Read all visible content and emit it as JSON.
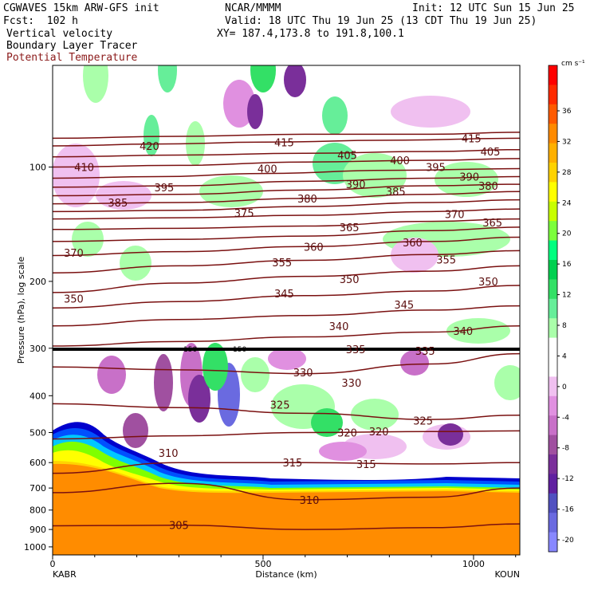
{
  "header": {
    "model": "CGWAVES 15km ARW-GFS init",
    "center": "NCAR/MMMM",
    "init": "Init: 12 UTC Sun 15 Jun 25",
    "fcst": "Fcst:  102 h",
    "valid": "Valid: 18 UTC Thu 19 Jun 25 (13 CDT Thu 19 Jun 25)",
    "field1": "Vertical velocity",
    "field2": "Boundary Layer Tracer",
    "field3": "Potential Temperature",
    "xy": "XY= 187.4,173.8 to 191.8,100.1"
  },
  "colors": {
    "theta_line": "#7a1010",
    "theta_label": "#5a0d0d",
    "field3_text": "#8b1a1a"
  },
  "colorbar": {
    "unit": "cm s⁻¹",
    "ticks": [
      "36",
      "32",
      "28",
      "24",
      "20",
      "16",
      "12",
      "8",
      "4",
      "0",
      "-4",
      "-8",
      "-12",
      "-16",
      "-20"
    ],
    "colors": [
      "#ff0000",
      "#ff2a00",
      "#ff5a00",
      "#ff8a00",
      "#ffb000",
      "#ffd200",
      "#ffff00",
      "#c8ff00",
      "#7cff3c",
      "#00ff7f",
      "#00d050",
      "#33e066",
      "#66ee99",
      "#aaffaa",
      "#ffffff",
      "#ffffff",
      "#f0c0f0",
      "#e090e0",
      "#c870c8",
      "#a050a0",
      "#7a2f9a",
      "#6020a0",
      "#5050c0",
      "#6a6ae0",
      "#8888ff"
    ]
  },
  "boundary_layer_colors": [
    "#ff8c00",
    "#ffd400",
    "#ffff00",
    "#7fff00",
    "#00c8ff",
    "#0050ff",
    "#0000cd"
  ],
  "chart_data": {
    "type": "heatmap",
    "title": "Vertical velocity",
    "xlabel": "Distance (km)",
    "ylabel": "Pressure (hPa), log scale",
    "x_ticks": [
      "0",
      "500",
      "1000"
    ],
    "xlim": [
      0,
      1110
    ],
    "y_ticks": [
      "100",
      "200",
      "300",
      "400",
      "500",
      "600",
      "700",
      "800",
      "900",
      "1000"
    ],
    "left_station": "KABR",
    "right_station": "KOUN",
    "tropopause_marks": [
      "150",
      "150"
    ],
    "theta_labels": [
      {
        "text": "420",
        "x": 230,
        "p": 88
      },
      {
        "text": "415",
        "x": 550,
        "p": 86
      },
      {
        "text": "415",
        "x": 995,
        "p": 84
      },
      {
        "text": "410",
        "x": 75,
        "p": 100
      },
      {
        "text": "405",
        "x": 700,
        "p": 93
      },
      {
        "text": "405",
        "x": 1040,
        "p": 91
      },
      {
        "text": "400",
        "x": 510,
        "p": 101
      },
      {
        "text": "400",
        "x": 825,
        "p": 96
      },
      {
        "text": "395",
        "x": 265,
        "p": 113
      },
      {
        "text": "395",
        "x": 910,
        "p": 100
      },
      {
        "text": "390",
        "x": 720,
        "p": 111
      },
      {
        "text": "390",
        "x": 990,
        "p": 106
      },
      {
        "text": "385",
        "x": 155,
        "p": 124
      },
      {
        "text": "385",
        "x": 815,
        "p": 116
      },
      {
        "text": "380",
        "x": 605,
        "p": 121
      },
      {
        "text": "380",
        "x": 1035,
        "p": 112
      },
      {
        "text": "375",
        "x": 455,
        "p": 132
      },
      {
        "text": "370",
        "x": 50,
        "p": 168
      },
      {
        "text": "370",
        "x": 955,
        "p": 133
      },
      {
        "text": "365",
        "x": 705,
        "p": 144
      },
      {
        "text": "365",
        "x": 1045,
        "p": 140
      },
      {
        "text": "360",
        "x": 620,
        "p": 162
      },
      {
        "text": "360",
        "x": 855,
        "p": 158
      },
      {
        "text": "355",
        "x": 545,
        "p": 178
      },
      {
        "text": "355",
        "x": 935,
        "p": 175
      },
      {
        "text": "350",
        "x": 50,
        "p": 222
      },
      {
        "text": "350",
        "x": 705,
        "p": 197
      },
      {
        "text": "350",
        "x": 1035,
        "p": 200
      },
      {
        "text": "345",
        "x": 550,
        "p": 215
      },
      {
        "text": "345",
        "x": 835,
        "p": 230
      },
      {
        "text": "340",
        "x": 680,
        "p": 262
      },
      {
        "text": "340",
        "x": 975,
        "p": 270
      },
      {
        "text": "335",
        "x": 720,
        "p": 302
      },
      {
        "text": "335",
        "x": 885,
        "p": 305
      },
      {
        "text": "330",
        "x": 595,
        "p": 347
      },
      {
        "text": "330",
        "x": 710,
        "p": 370
      },
      {
        "text": "325",
        "x": 540,
        "p": 422
      },
      {
        "text": "325",
        "x": 880,
        "p": 465
      },
      {
        "text": "320",
        "x": 700,
        "p": 500
      },
      {
        "text": "320",
        "x": 775,
        "p": 497
      },
      {
        "text": "315",
        "x": 570,
        "p": 600
      },
      {
        "text": "315",
        "x": 745,
        "p": 605
      },
      {
        "text": "310",
        "x": 275,
        "p": 565
      },
      {
        "text": "310",
        "x": 610,
        "p": 752
      },
      {
        "text": "305",
        "x": 300,
        "p": 877
      }
    ],
    "theta_lines": [
      {
        "level": 420,
        "points": [
          [
            0,
            84
          ],
          [
            300,
            83
          ],
          [
            600,
            82
          ],
          [
            900,
            82
          ],
          [
            1110,
            81
          ]
        ]
      },
      {
        "level": 415,
        "points": [
          [
            0,
            88
          ],
          [
            250,
            87
          ],
          [
            500,
            86
          ],
          [
            800,
            85
          ],
          [
            1110,
            84
          ]
        ]
      },
      {
        "level": 410,
        "points": [
          [
            0,
            94
          ],
          [
            300,
            93
          ],
          [
            600,
            92
          ],
          [
            900,
            91
          ],
          [
            1110,
            90
          ]
        ]
      },
      {
        "level": 405,
        "points": [
          [
            0,
            100
          ],
          [
            300,
            99
          ],
          [
            600,
            97
          ],
          [
            900,
            96
          ],
          [
            1110,
            95
          ]
        ]
      },
      {
        "level": 400,
        "points": [
          [
            0,
            107
          ],
          [
            250,
            106
          ],
          [
            500,
            104
          ],
          [
            800,
            102
          ],
          [
            1110,
            101
          ]
        ]
      },
      {
        "level": 395,
        "points": [
          [
            0,
            113
          ],
          [
            300,
            112
          ],
          [
            600,
            109
          ],
          [
            900,
            107
          ],
          [
            1110,
            106
          ]
        ]
      },
      {
        "level": 390,
        "points": [
          [
            0,
            119
          ],
          [
            300,
            118
          ],
          [
            600,
            115
          ],
          [
            900,
            112
          ],
          [
            1110,
            111
          ]
        ]
      },
      {
        "level": 385,
        "points": [
          [
            0,
            125
          ],
          [
            300,
            124
          ],
          [
            600,
            121
          ],
          [
            900,
            118
          ],
          [
            1110,
            116
          ]
        ]
      },
      {
        "level": 380,
        "points": [
          [
            0,
            131
          ],
          [
            300,
            130
          ],
          [
            600,
            127
          ],
          [
            900,
            124
          ],
          [
            1110,
            122
          ]
        ]
      },
      {
        "level": 375,
        "points": [
          [
            0,
            137
          ],
          [
            300,
            136
          ],
          [
            600,
            134
          ],
          [
            900,
            131
          ],
          [
            1110,
            129
          ]
        ]
      },
      {
        "level": 370,
        "points": [
          [
            0,
            146
          ],
          [
            300,
            145
          ],
          [
            600,
            143
          ],
          [
            900,
            139
          ],
          [
            1110,
            137
          ]
        ]
      },
      {
        "level": 365,
        "points": [
          [
            0,
            157
          ],
          [
            300,
            155
          ],
          [
            600,
            152
          ],
          [
            900,
            147
          ],
          [
            1110,
            144
          ]
        ]
      },
      {
        "level": 360,
        "points": [
          [
            0,
            171
          ],
          [
            300,
            167
          ],
          [
            600,
            162
          ],
          [
            900,
            157
          ],
          [
            1110,
            153
          ]
        ]
      },
      {
        "level": 355,
        "points": [
          [
            0,
            190
          ],
          [
            300,
            182
          ],
          [
            600,
            176
          ],
          [
            900,
            170
          ],
          [
            1110,
            166
          ]
        ]
      },
      {
        "level": 350,
        "points": [
          [
            0,
            214
          ],
          [
            300,
            202
          ],
          [
            600,
            194
          ],
          [
            900,
            188
          ],
          [
            1110,
            182
          ]
        ]
      },
      {
        "level": 345,
        "points": [
          [
            0,
            235
          ],
          [
            300,
            226
          ],
          [
            600,
            218
          ],
          [
            900,
            212
          ],
          [
            1110,
            205
          ]
        ]
      },
      {
        "level": 340,
        "points": [
          [
            0,
            262
          ],
          [
            300,
            252
          ],
          [
            600,
            246
          ],
          [
            900,
            238
          ],
          [
            1110,
            232
          ]
        ]
      },
      {
        "level": 335,
        "points": [
          [
            0,
            296
          ],
          [
            300,
            288
          ],
          [
            600,
            280
          ],
          [
            900,
            272
          ],
          [
            1110,
            262
          ]
        ]
      },
      {
        "level": 330,
        "points": [
          [
            0,
            336
          ],
          [
            300,
            342
          ],
          [
            600,
            350
          ],
          [
            900,
            330
          ],
          [
            1110,
            310
          ]
        ]
      },
      {
        "level": 325,
        "points": [
          [
            0,
            420
          ],
          [
            300,
            430
          ],
          [
            600,
            445
          ],
          [
            900,
            462
          ],
          [
            1110,
            450
          ]
        ]
      },
      {
        "level": 320,
        "points": [
          [
            0,
            520
          ],
          [
            300,
            510
          ],
          [
            600,
            500
          ],
          [
            900,
            497
          ],
          [
            1110,
            495
          ]
        ]
      },
      {
        "level": 315,
        "points": [
          [
            0,
            640
          ],
          [
            300,
            600
          ],
          [
            600,
            600
          ],
          [
            900,
            605
          ],
          [
            1110,
            600
          ]
        ]
      },
      {
        "level": 310,
        "points": [
          [
            0,
            720
          ],
          [
            300,
            680
          ],
          [
            600,
            752
          ],
          [
            900,
            740
          ],
          [
            1110,
            700
          ]
        ]
      },
      {
        "level": 305,
        "points": [
          [
            0,
            880
          ],
          [
            300,
            877
          ],
          [
            600,
            900
          ],
          [
            900,
            890
          ],
          [
            1110,
            870
          ]
        ]
      }
    ]
  }
}
